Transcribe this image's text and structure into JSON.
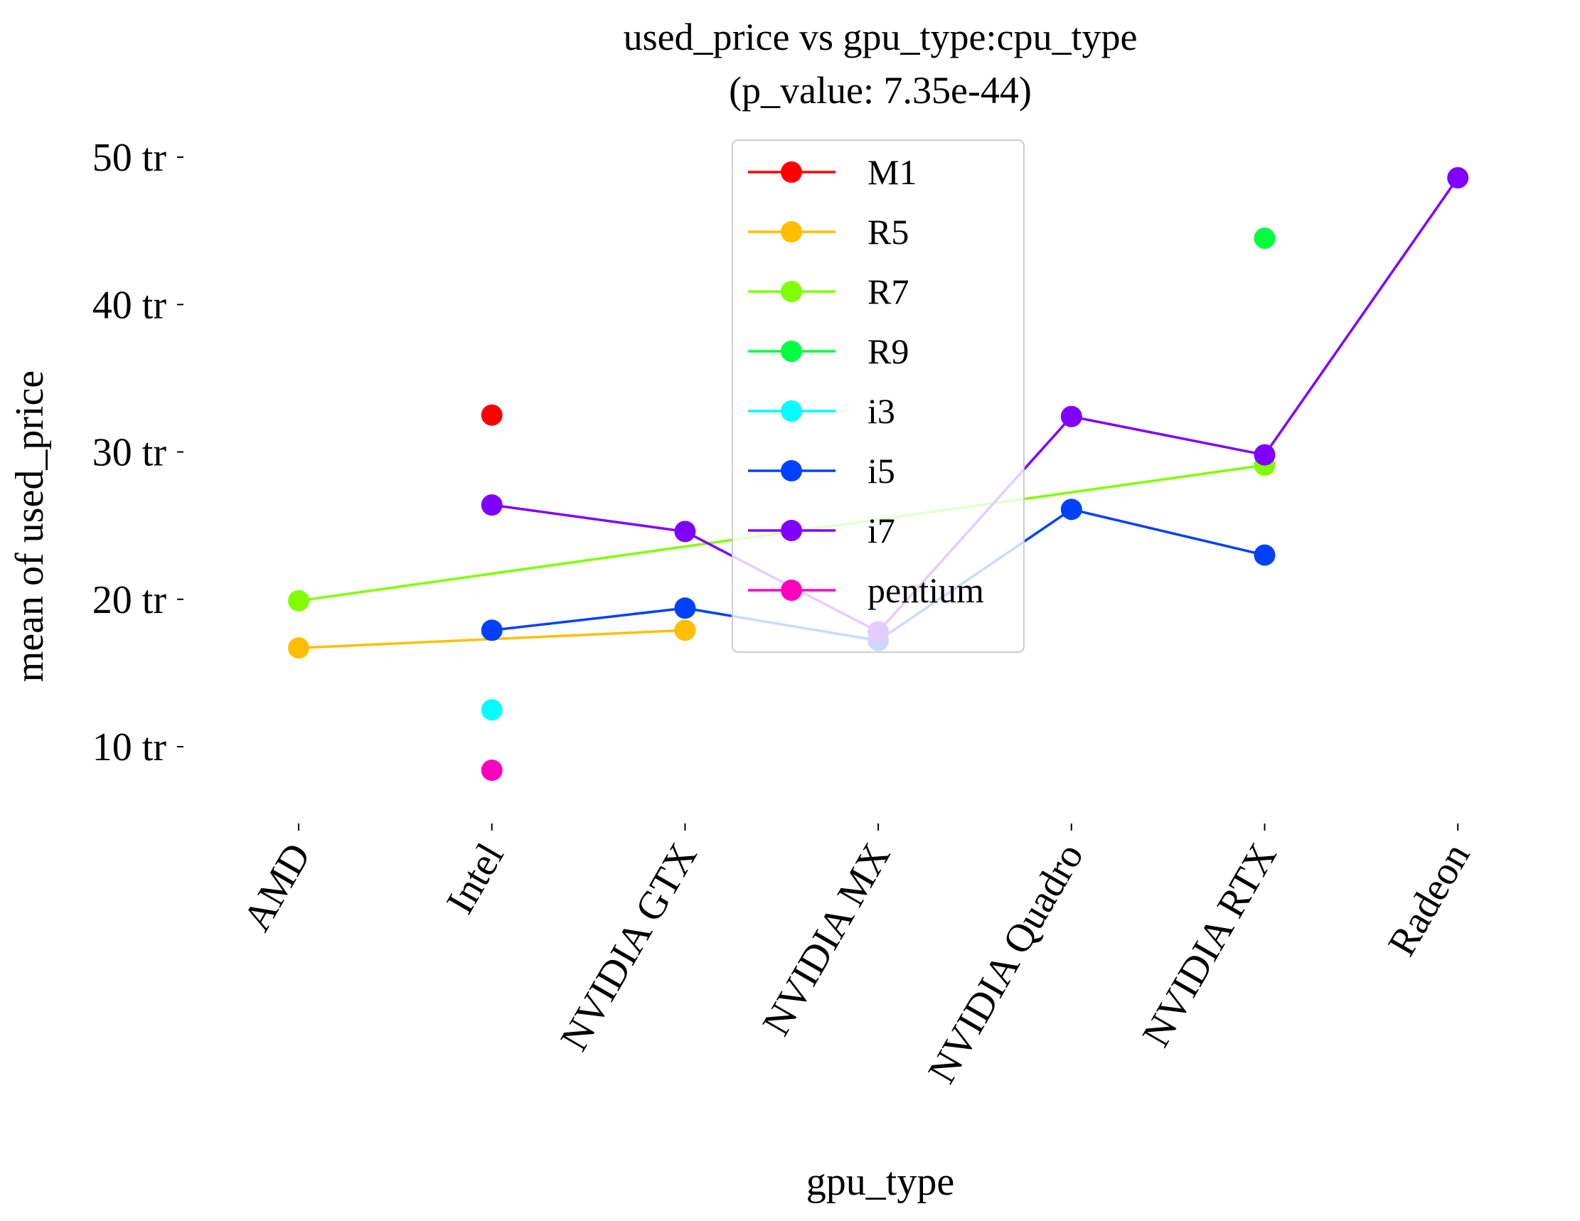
{
  "chart_data": {
    "type": "line",
    "title": "used_price vs gpu_type:cpu_type",
    "subtitle": "(p_value: 7.35e-44)",
    "xlabel": "gpu_type",
    "ylabel": "mean of used_price",
    "categories": [
      "AMD",
      "Intel",
      "NVIDIA GTX",
      "NVIDIA MX",
      "NVIDIA Quadro",
      "NVIDIA RTX",
      "Radeon"
    ],
    "yticks": [
      {
        "value": 10,
        "label": "10 tr"
      },
      {
        "value": 20,
        "label": "20 tr"
      },
      {
        "value": 30,
        "label": "30 tr"
      },
      {
        "value": 40,
        "label": "40 tr"
      },
      {
        "value": 50,
        "label": "50 tr"
      }
    ],
    "ylim": [
      4.5,
      51.5
    ],
    "legend_position": "upper center",
    "grid": false,
    "series": [
      {
        "name": "M1",
        "color": "#ff0000",
        "values": [
          null,
          32.5,
          null,
          null,
          null,
          null,
          null
        ]
      },
      {
        "name": "R5",
        "color": "#ffbf00",
        "values": [
          16.7,
          null,
          17.9,
          null,
          null,
          null,
          null
        ]
      },
      {
        "name": "R7",
        "color": "#80ff00",
        "values": [
          19.9,
          null,
          null,
          null,
          null,
          29.1,
          null
        ]
      },
      {
        "name": "R9",
        "color": "#00ff40",
        "values": [
          null,
          null,
          null,
          null,
          null,
          44.5,
          null
        ]
      },
      {
        "name": "i3",
        "color": "#00ffff",
        "values": [
          null,
          12.5,
          null,
          null,
          null,
          null,
          null
        ]
      },
      {
        "name": "i5",
        "color": "#0040ff",
        "values": [
          null,
          17.9,
          19.4,
          17.2,
          26.1,
          23.0,
          null
        ]
      },
      {
        "name": "i7",
        "color": "#7f00ff",
        "values": [
          null,
          26.4,
          24.6,
          17.8,
          32.4,
          29.8,
          48.6
        ]
      },
      {
        "name": "pentium",
        "color": "#ff00bf",
        "values": [
          null,
          8.4,
          null,
          null,
          null,
          null,
          null
        ]
      }
    ]
  }
}
